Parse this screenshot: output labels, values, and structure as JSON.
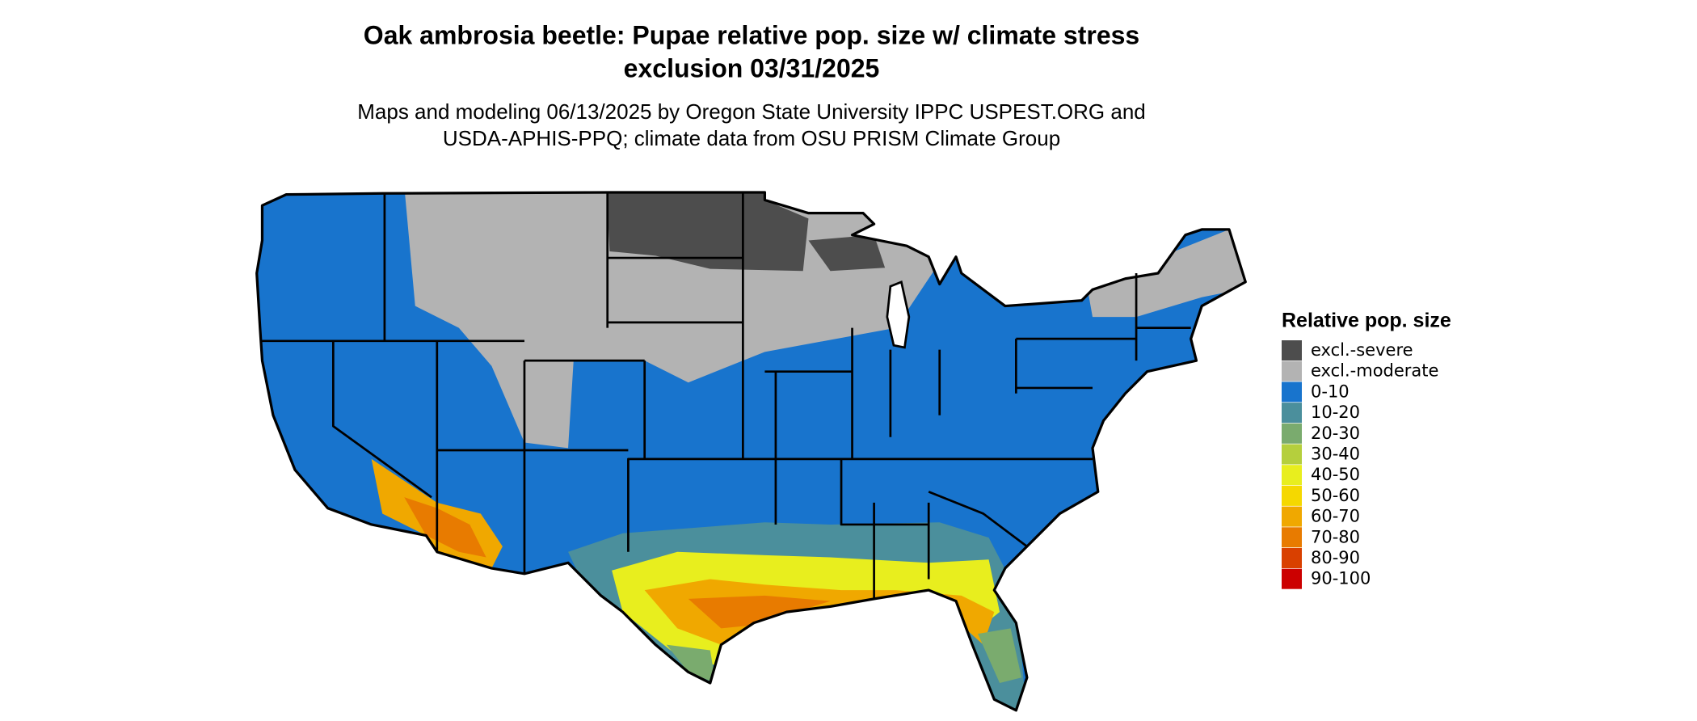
{
  "header": {
    "title": [
      "Oak ambrosia beetle: Pupae relative pop. size w/ climate stress",
      "exclusion 03/31/2025"
    ],
    "subtitle": [
      "Maps and modeling 06/13/2025 by Oregon State University IPPC USPEST.ORG and",
      "USDA-APHIS-PPQ; climate data from OSU PRISM Climate Group"
    ]
  },
  "legend": {
    "title": "Relative pop. size",
    "items": [
      {
        "label": "excl.-severe",
        "color": "#4d4d4d"
      },
      {
        "label": "excl.-moderate",
        "color": "#b3b3b3"
      },
      {
        "label": "0-10",
        "color": "#1874cd"
      },
      {
        "label": "10-20",
        "color": "#4b8f9c"
      },
      {
        "label": "20-30",
        "color": "#7aab6e"
      },
      {
        "label": "30-40",
        "color": "#b5cf3d"
      },
      {
        "label": "40-50",
        "color": "#e8ee1e"
      },
      {
        "label": "50-60",
        "color": "#f5d800"
      },
      {
        "label": "60-70",
        "color": "#f0a800"
      },
      {
        "label": "70-80",
        "color": "#e87b00"
      },
      {
        "label": "80-90",
        "color": "#d94000"
      },
      {
        "label": "90-100",
        "color": "#cc0000"
      }
    ]
  }
}
